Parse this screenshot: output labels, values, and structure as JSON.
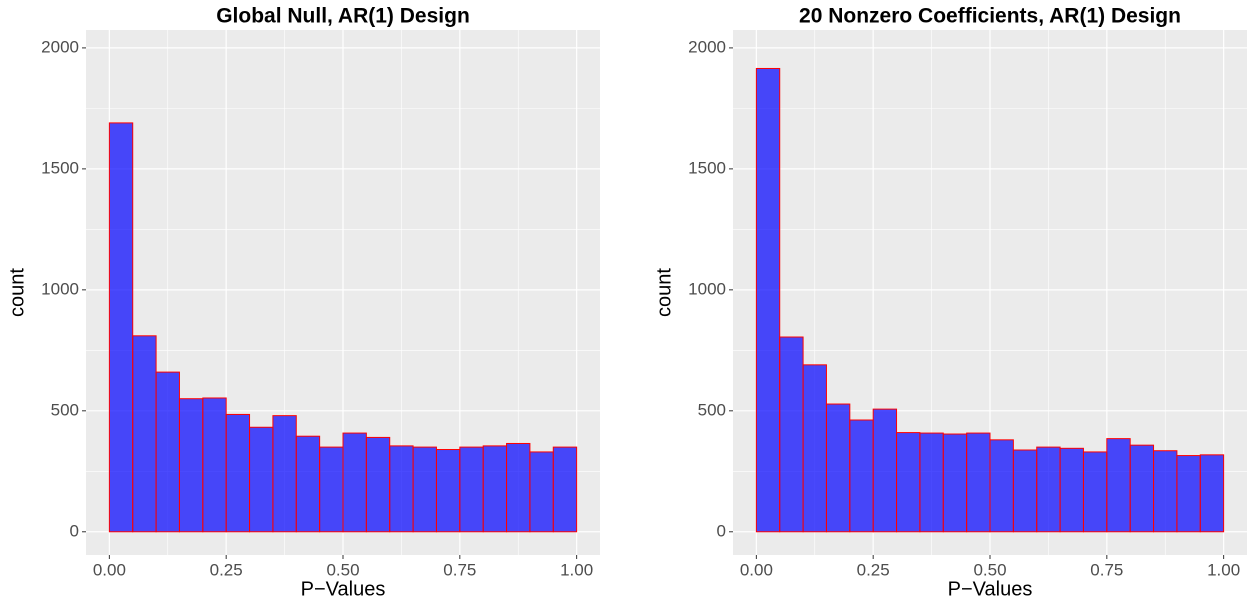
{
  "chart_data": [
    {
      "type": "histogram",
      "title": "Global Null, AR(1) Design",
      "x_label": "P−Values",
      "y_label": "count",
      "bins": [
        0,
        0.05,
        0.1,
        0.15,
        0.2,
        0.25,
        0.3,
        0.35,
        0.4,
        0.45,
        0.5,
        0.55,
        0.6,
        0.65,
        0.7,
        0.75,
        0.8,
        0.85,
        0.9,
        0.95,
        1.0
      ],
      "values": [
        1690,
        810,
        660,
        550,
        553,
        485,
        432,
        480,
        395,
        350,
        408,
        390,
        355,
        350,
        340,
        350,
        355,
        365,
        330,
        350
      ],
      "color": "#0000ff",
      "edge_color": "#ff0000",
      "xlim": [
        -0.05,
        1.05
      ],
      "ylim": [
        -96,
        2074
      ],
      "xticks": [
        {
          "value": 0,
          "label": "0.00"
        },
        {
          "value": 0.25,
          "label": "0.25"
        },
        {
          "value": 0.5,
          "label": "0.50"
        },
        {
          "value": 0.75,
          "label": "0.75"
        },
        {
          "value": 1,
          "label": "1.00"
        }
      ],
      "yticks": [
        0,
        500,
        1000,
        1500,
        2000
      ],
      "grid": true
    },
    {
      "type": "histogram",
      "title": "20 Nonzero Coefficients, AR(1) Design",
      "x_label": "P−Values",
      "y_label": "count",
      "bins": [
        0,
        0.05,
        0.1,
        0.15,
        0.2,
        0.25,
        0.3,
        0.35,
        0.4,
        0.45,
        0.5,
        0.55,
        0.6,
        0.65,
        0.7,
        0.75,
        0.8,
        0.85,
        0.9,
        0.95,
        1.0
      ],
      "values": [
        1915,
        805,
        690,
        528,
        462,
        507,
        410,
        408,
        404,
        408,
        380,
        338,
        350,
        345,
        330,
        385,
        358,
        335,
        315,
        318
      ],
      "color": "#0000ff",
      "edge_color": "#ff0000",
      "xlim": [
        -0.05,
        1.05
      ],
      "ylim": [
        -96,
        2074
      ],
      "xticks": [
        {
          "value": 0,
          "label": "0.00"
        },
        {
          "value": 0.25,
          "label": "0.25"
        },
        {
          "value": 0.5,
          "label": "0.50"
        },
        {
          "value": 0.75,
          "label": "0.75"
        },
        {
          "value": 1,
          "label": "1.00"
        }
      ],
      "yticks": [
        0,
        500,
        1000,
        1500,
        2000
      ],
      "grid": true
    }
  ]
}
